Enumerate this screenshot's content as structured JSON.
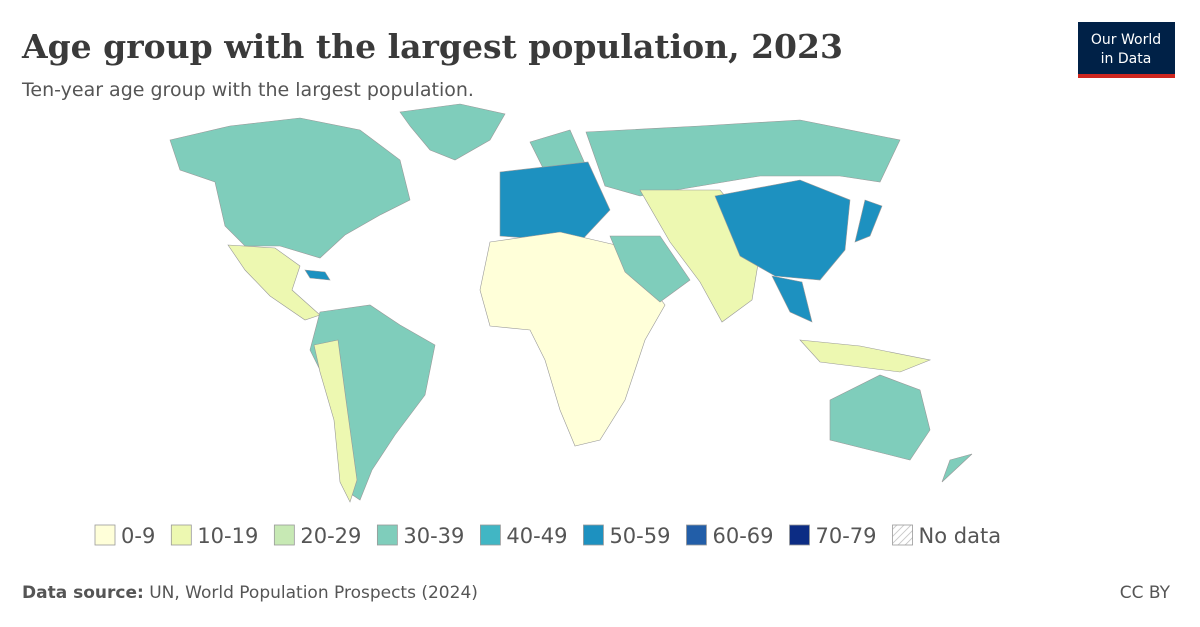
{
  "header": {
    "title": "Age group with the largest population, 2023",
    "subtitle": "Ten-year age group with the largest population."
  },
  "logo": {
    "line1": "Our World",
    "line2": "in Data"
  },
  "legend": {
    "items": [
      {
        "label": "0-9",
        "color": "#ffffd9"
      },
      {
        "label": "10-19",
        "color": "#edf8b1"
      },
      {
        "label": "20-29",
        "color": "#c7e9b4"
      },
      {
        "label": "30-39",
        "color": "#7fcdbb"
      },
      {
        "label": "40-49",
        "color": "#41b6c4"
      },
      {
        "label": "50-59",
        "color": "#1d91c0"
      },
      {
        "label": "60-69",
        "color": "#225ea8"
      },
      {
        "label": "70-79",
        "color": "#0c2c84"
      },
      {
        "label": "No data",
        "color": "hatched"
      }
    ]
  },
  "footer": {
    "source_label": "Data source:",
    "source": "UN, World Population Prospects (2024)",
    "license": "CC BY"
  }
}
